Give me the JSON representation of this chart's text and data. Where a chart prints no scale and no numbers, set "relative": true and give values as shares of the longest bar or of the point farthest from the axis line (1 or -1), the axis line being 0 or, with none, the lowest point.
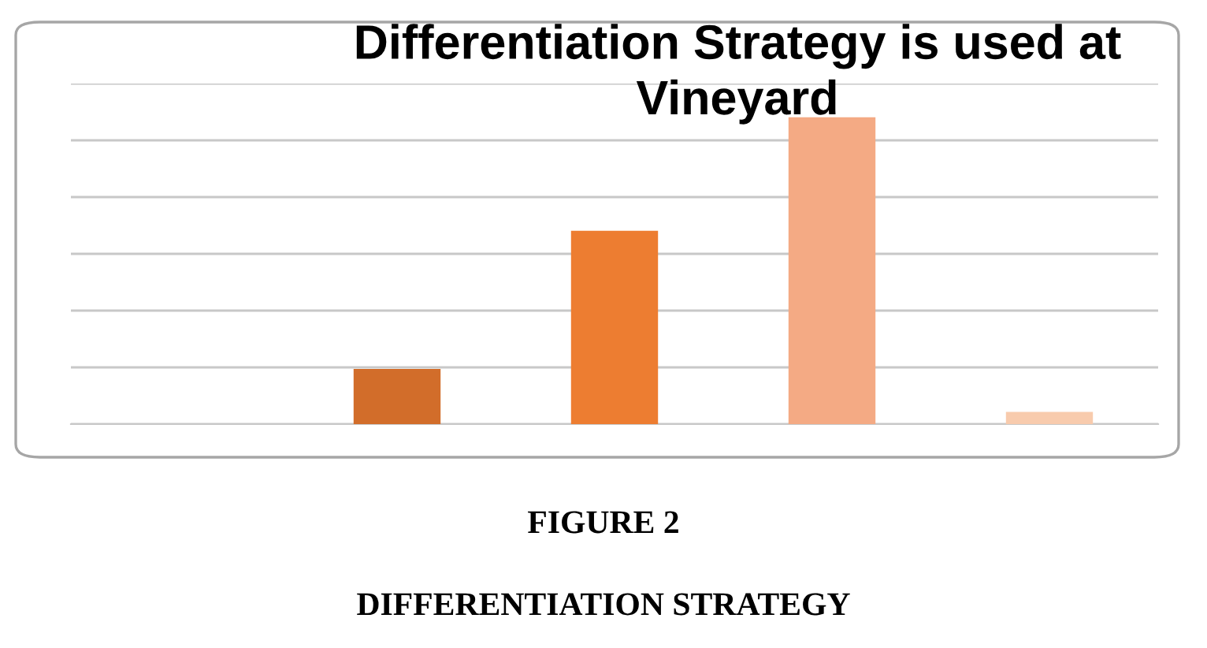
{
  "chart_data": {
    "type": "bar",
    "title": "Differentiation Strategy is used at Vineyard",
    "categories": [
      null,
      null,
      null,
      null
    ],
    "values": [
      0.18,
      0.63,
      1,
      0.04
    ],
    "colors": [
      "#d26d2a",
      "#ed7d31",
      "#f4aa84",
      "#f8cbad"
    ],
    "relative": true,
    "grid": "y",
    "annotations": [
      "FIGURE 2",
      "DIFFERENTIATION STRATEGY"
    ]
  }
}
